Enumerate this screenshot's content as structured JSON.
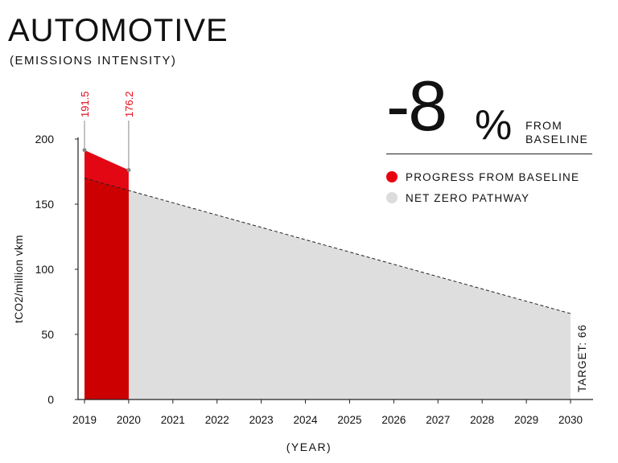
{
  "header": {
    "title": "AUTOMOTIVE",
    "subtitle": "(EMISSIONS INTENSITY)"
  },
  "stat": {
    "value": "-8",
    "unit": "%",
    "label_line1": "FROM",
    "label_line2": "BASELINE"
  },
  "legend": [
    {
      "label": "PROGRESS FROM BASELINE",
      "color": "#e8000d"
    },
    {
      "label": "NET ZERO PATHWAY",
      "color": "#dcdcdc"
    }
  ],
  "colors": {
    "progress_fill": "#e30613",
    "progress_dark": "#cc0000",
    "pathway_fill": "#dedede",
    "annotation_red": "#e30613"
  },
  "chart_data": {
    "type": "area",
    "x": [
      2019,
      2020,
      2021,
      2022,
      2023,
      2024,
      2025,
      2026,
      2027,
      2028,
      2029,
      2030
    ],
    "xlabel": "(YEAR)",
    "ylabel": "tCO2/million vkm",
    "ylim": [
      0,
      200
    ],
    "yticks": [
      0,
      50,
      100,
      150,
      200
    ],
    "series": [
      {
        "name": "PROGRESS FROM BASELINE",
        "x": [
          2019,
          2020
        ],
        "values": [
          191.5,
          176.2
        ]
      },
      {
        "name": "NET ZERO PATHWAY",
        "x": [
          2019,
          2030
        ],
        "values": [
          170,
          66
        ]
      }
    ],
    "annotations": [
      {
        "x": 2019,
        "y": 191.5,
        "text": "191.5"
      },
      {
        "x": 2020,
        "y": 176.2,
        "text": "176.2"
      }
    ],
    "target_label": "TARGET: 66",
    "grid": false
  }
}
